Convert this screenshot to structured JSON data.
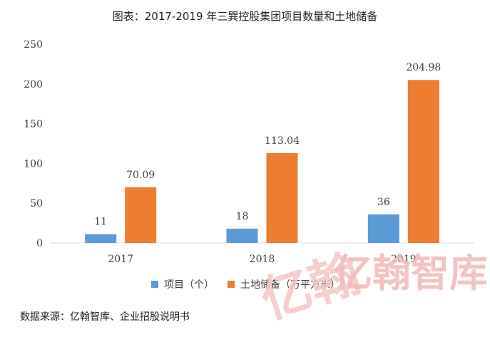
{
  "title": "图表：2017-2019 年三巽控股集团项目数量和土地储备",
  "source": "数据来源：亿翰智库、企业招股说明书",
  "watermark": {
    "text": "亿翰智库",
    "mark": "亿翰"
  },
  "colors": {
    "series1": "#5b9bd5",
    "series2": "#ed7d31",
    "watermark": "#f4c6c6",
    "axis": "#d9d9d9",
    "text": "#404040"
  },
  "chart_data": {
    "type": "bar",
    "categories": [
      "2017",
      "2018",
      "2019"
    ],
    "series": [
      {
        "name": "项目（个）",
        "values": [
          11,
          18,
          36
        ],
        "labels": [
          "11",
          "18",
          "36"
        ]
      },
      {
        "name": "土地储备（万平方米）",
        "values": [
          70.09,
          113.04,
          204.98
        ],
        "labels": [
          "70.09",
          "113.04",
          "204.98"
        ]
      }
    ],
    "ylim": [
      0,
      250
    ],
    "yticks": [
      0,
      50,
      100,
      150,
      200,
      250
    ],
    "grid": false,
    "legend": "bottom"
  }
}
